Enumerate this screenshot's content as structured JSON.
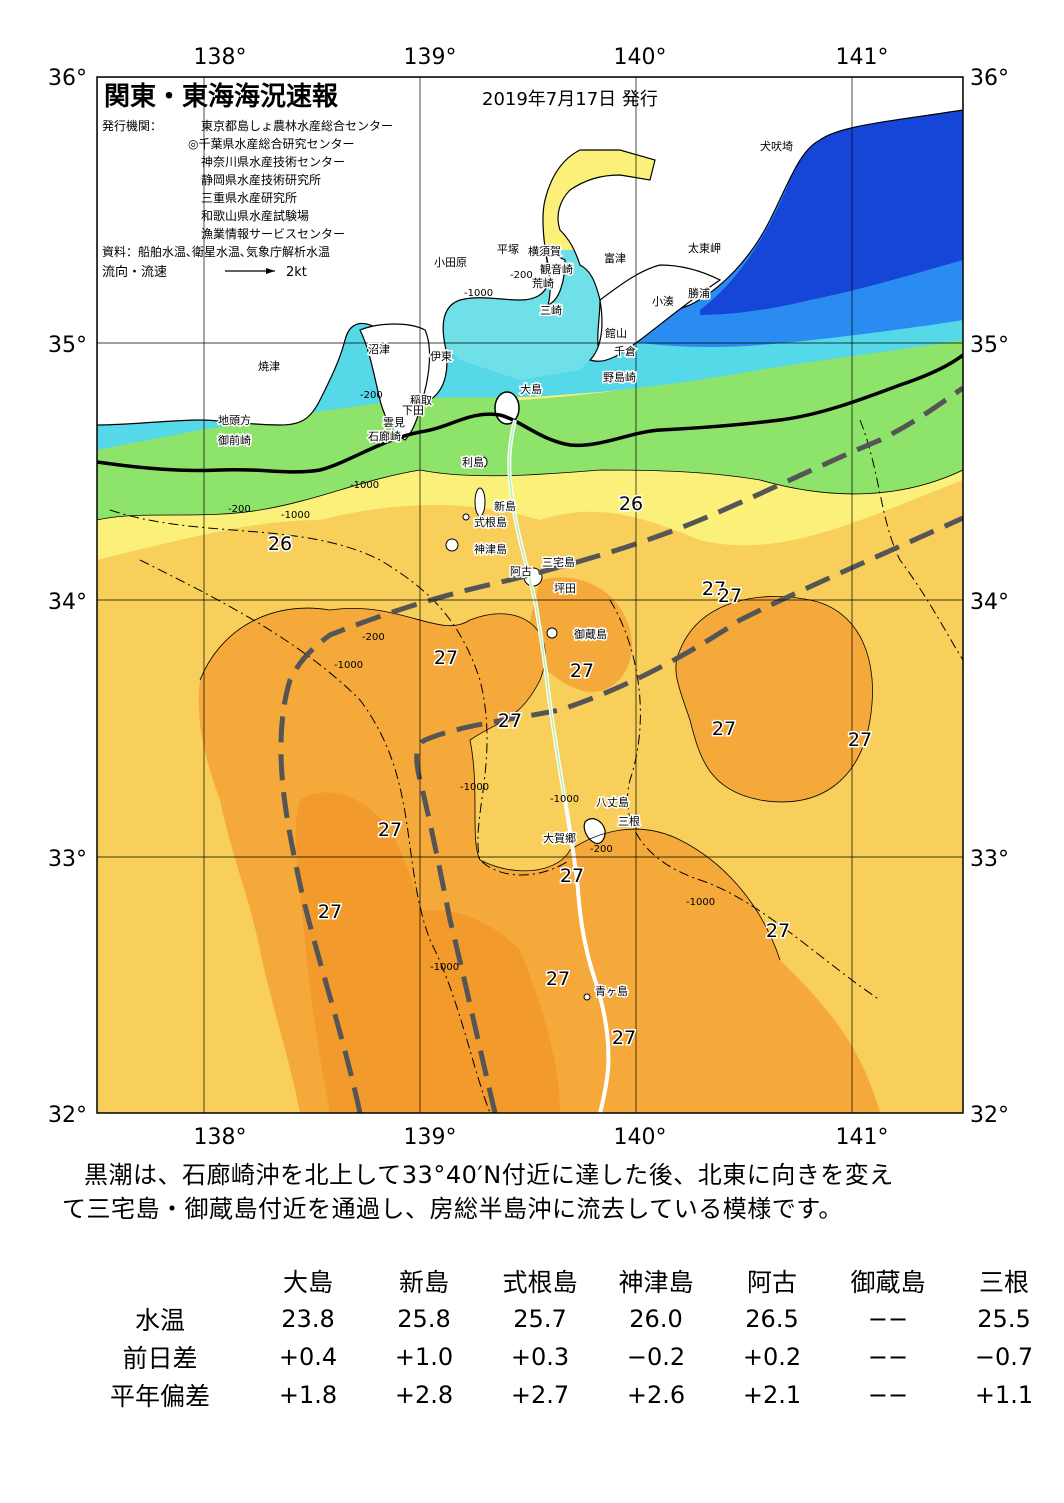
{
  "map": {
    "title": "関東・東海海況速報",
    "issue_date": "2019年7月17日 発行",
    "issuer_label": "発行機関：",
    "issuers": [
      "東京都島しょ農林水産総合センター",
      "◎千葉県水産総合研究センター",
      "神奈川県水産技術センター",
      "静岡県水産技術研究所",
      "三重県水産研究所",
      "和歌山県水産試験場",
      "漁業情報サービスセンター"
    ],
    "source": "資料：船舶水温､衛星水温､気象庁解析水温",
    "flow_label": "流向・流速",
    "flow_scale": "2kt",
    "lon_labels": [
      "138°",
      "139°",
      "140°",
      "141°"
    ],
    "lat_labels": [
      "36°",
      "35°",
      "34°",
      "33°",
      "32°"
    ],
    "colors": {
      "warm_27": "#f5a93a",
      "warm_26": "#f8cf5a",
      "warm_25": "#fbf07a",
      "green": "#8ee36a",
      "cyan": "#55d8e8",
      "blue": "#2a8cf0",
      "deep_blue": "#1646d8",
      "kuroshio_axis": "#555555"
    },
    "place_names": [
      "犬吠埼",
      "太東岬",
      "勝浦",
      "小湊",
      "富津",
      "館山",
      "千倉",
      "野島崎",
      "横須賀",
      "観音崎",
      "荒崎",
      "三崎",
      "平塚",
      "小田原",
      "沼津",
      "伊東",
      "焼津",
      "稲取",
      "下田",
      "雲見",
      "石廊崎",
      "地頭方",
      "御前崎",
      "大島",
      "利島",
      "新島",
      "式根島",
      "神津島",
      "三宅島",
      "阿古",
      "坪田",
      "御蔵島",
      "八丈島",
      "三根",
      "大賀郷",
      "青ヶ島"
    ],
    "isotherm_labels": [
      "26",
      "26",
      "27",
      "27",
      "27",
      "27",
      "27",
      "27",
      "27",
      "27",
      "27",
      "27",
      "27",
      "27",
      "27"
    ],
    "depth_labels": [
      "-200",
      "-1000",
      "-200",
      "-1000",
      "-200",
      "-1000",
      "-200",
      "-1000",
      "-1000",
      "-200",
      "-1000",
      "-1000",
      "-1000"
    ]
  },
  "commentary": [
    "黒潮は、石廊崎沖を北上して33°40′N付近に達した後、北東に向きを変え",
    "て三宅島・御蔵島付近を通過し、房総半島沖に流去している模様です。"
  ],
  "table": {
    "columns": [
      "大島",
      "新島",
      "式根島",
      "神津島",
      "阿古",
      "御蔵島",
      "三根"
    ],
    "rows": [
      {
        "label": "水温",
        "values": [
          "23.8",
          "25.8",
          "25.7",
          "26.0",
          "26.5",
          "−−",
          "25.5"
        ]
      },
      {
        "label": "前日差",
        "values": [
          "+0.4",
          "+1.0",
          "+0.3",
          "−0.2",
          "+0.2",
          "−−",
          "−0.7"
        ]
      },
      {
        "label": "平年偏差",
        "values": [
          "+1.8",
          "+2.8",
          "+2.7",
          "+2.6",
          "+2.1",
          "−−",
          "+1.1"
        ]
      }
    ]
  }
}
